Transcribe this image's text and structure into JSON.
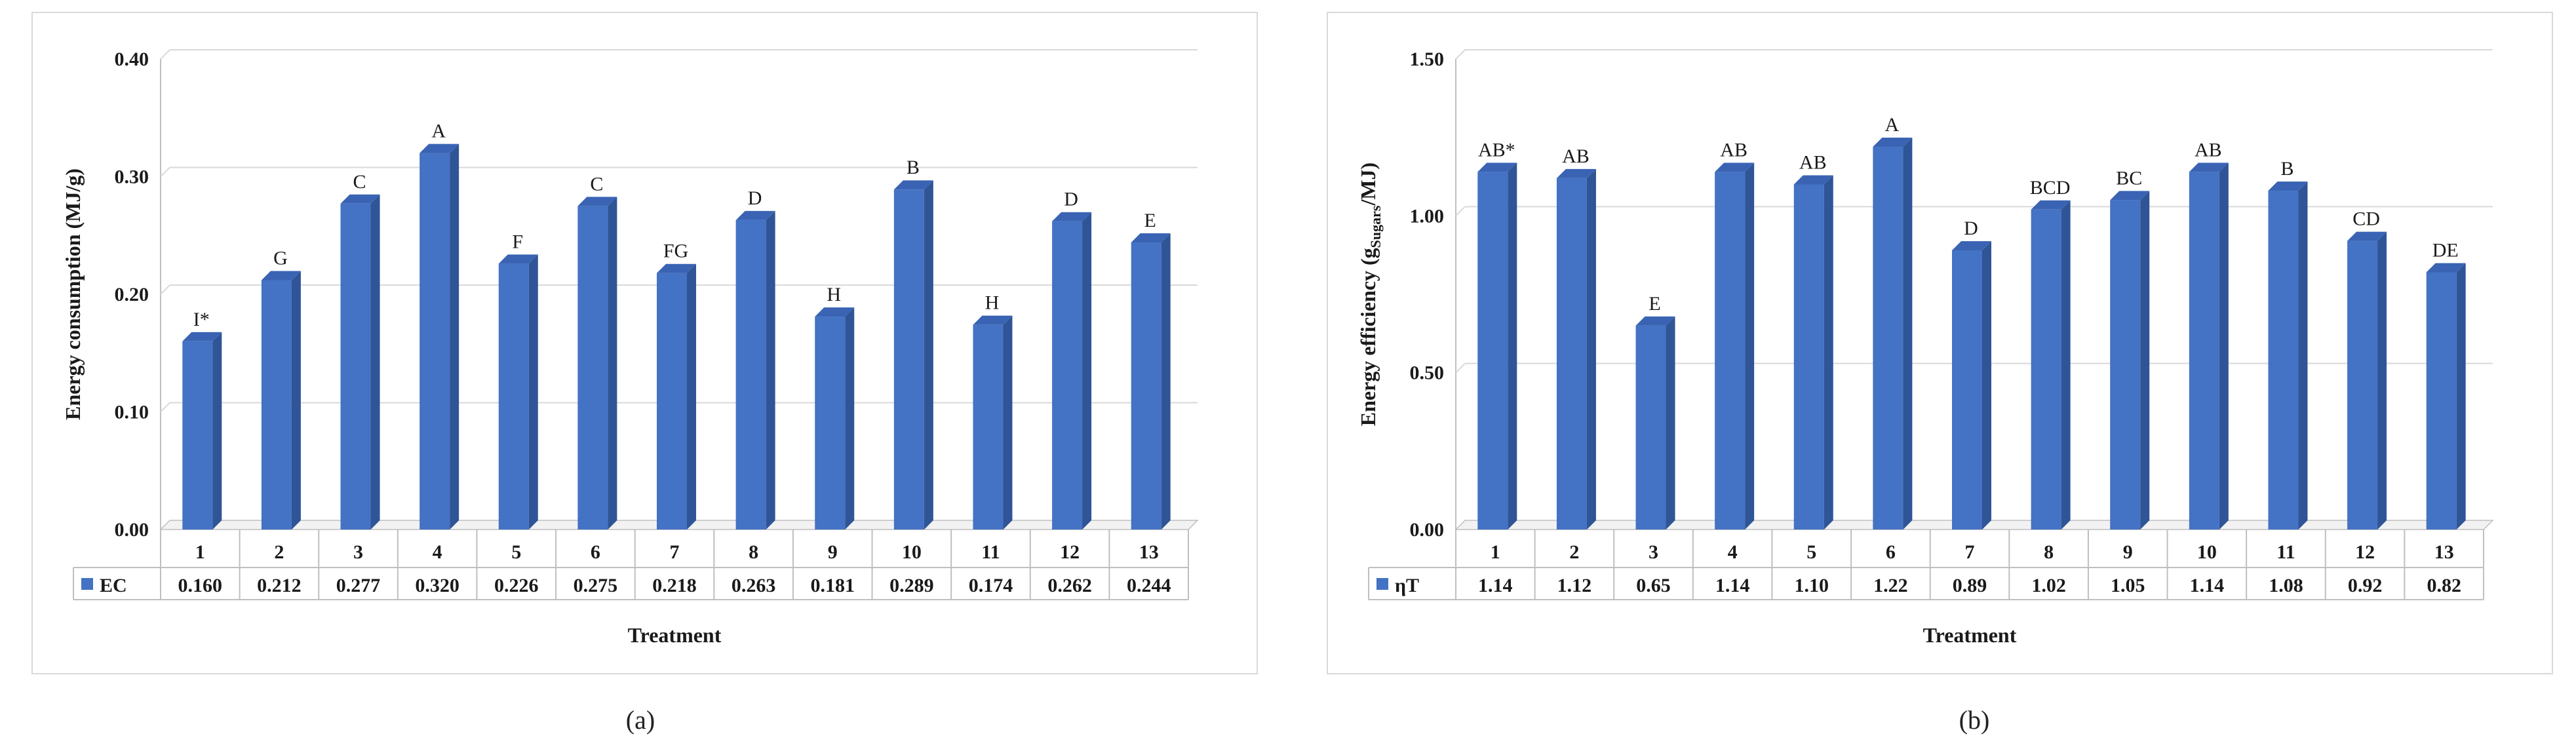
{
  "colors": {
    "bar_front": "#4472C4",
    "bar_side": "#2F5597",
    "bar_top": "#3A64B3",
    "grid": "#d9d9d9",
    "axis": "#bfbfbf",
    "text": "#1a1a1a"
  },
  "panels": [
    {
      "caption": "(a)"
    },
    {
      "caption": "(b)"
    }
  ],
  "chart_data": [
    {
      "type": "bar",
      "title": "",
      "xlabel": "Treatment",
      "ylabel": "Energy consumption (MJ/g)",
      "ylim": [
        0,
        0.4
      ],
      "yticks": [
        "0.00",
        "0.10",
        "0.20",
        "0.30",
        "0.40"
      ],
      "grid": true,
      "categories": [
        "1",
        "2",
        "3",
        "4",
        "5",
        "6",
        "7",
        "8",
        "9",
        "10",
        "11",
        "12",
        "13"
      ],
      "series": [
        {
          "name": "EC",
          "values": [
            0.16,
            0.212,
            0.277,
            0.32,
            0.226,
            0.275,
            0.218,
            0.263,
            0.181,
            0.289,
            0.174,
            0.262,
            0.244
          ],
          "value_labels": [
            "0.160",
            "0.212",
            "0.277",
            "0.320",
            "0.226",
            "0.275",
            "0.218",
            "0.263",
            "0.181",
            "0.289",
            "0.174",
            "0.262",
            "0.244"
          ],
          "letters": [
            "I*",
            "G",
            "C",
            "A",
            "F",
            "C",
            "FG",
            "D",
            "H",
            "B",
            "H",
            "D",
            "E"
          ]
        }
      ]
    },
    {
      "type": "bar",
      "title": "",
      "xlabel": "Treatment",
      "ylabel_main": "Energy efficiency (g",
      "ylabel_sub": "Sugars",
      "ylabel_tail": "/MJ)",
      "ylim": [
        0,
        1.5
      ],
      "yticks": [
        "0.00",
        "0.50",
        "1.00",
        "1.50"
      ],
      "grid": true,
      "categories": [
        "1",
        "2",
        "3",
        "4",
        "5",
        "6",
        "7",
        "8",
        "9",
        "10",
        "11",
        "12",
        "13"
      ],
      "series": [
        {
          "name": "ηT",
          "values": [
            1.14,
            1.12,
            0.65,
            1.14,
            1.1,
            1.22,
            0.89,
            1.02,
            1.05,
            1.14,
            1.08,
            0.92,
            0.82
          ],
          "value_labels": [
            "1.14",
            "1.12",
            "0.65",
            "1.14",
            "1.10",
            "1.22",
            "0.89",
            "1.02",
            "1.05",
            "1.14",
            "1.08",
            "0.92",
            "0.82"
          ],
          "letters": [
            "AB*",
            "AB",
            "E",
            "AB",
            "AB",
            "A",
            "D",
            "BCD",
            "BC",
            "AB",
            "B",
            "CD",
            "DE"
          ]
        }
      ]
    }
  ]
}
